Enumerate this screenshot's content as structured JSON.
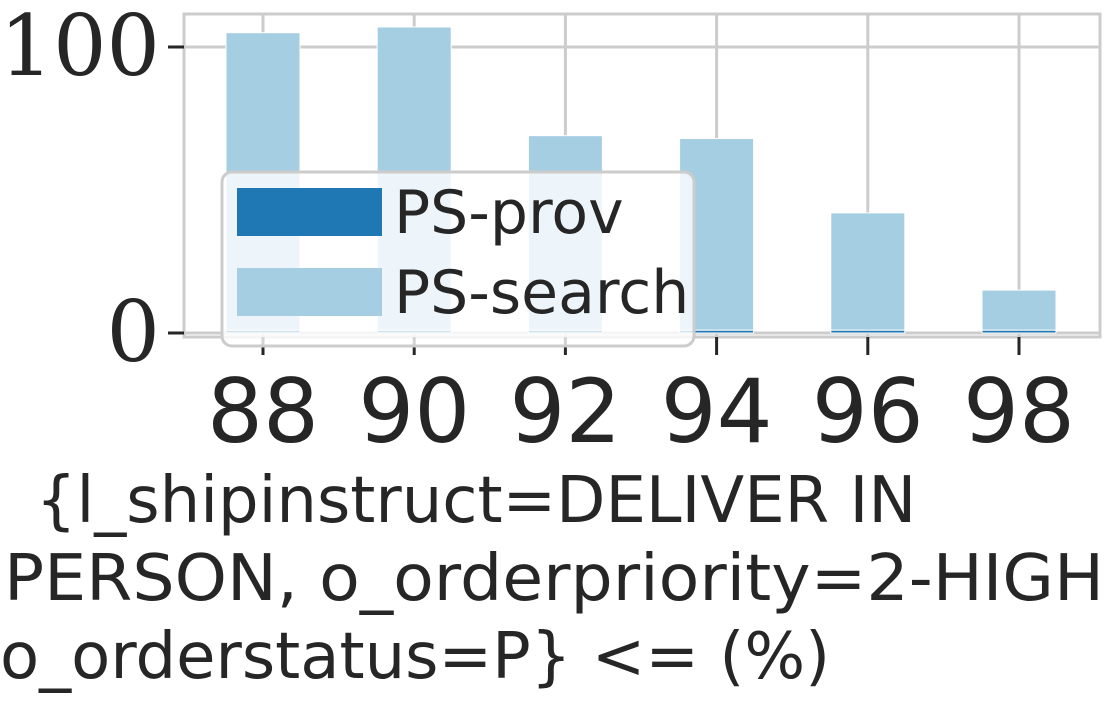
{
  "chart_data": {
    "type": "bar",
    "stacked": true,
    "categories": [
      "88",
      "90",
      "92",
      "94",
      "96",
      "98"
    ],
    "series": [
      {
        "name": "PS-prov",
        "color": "#1f78b4",
        "values": [
          1,
          1,
          1,
          1,
          1,
          1
        ]
      },
      {
        "name": "PS-search",
        "color": "#a6cee3",
        "values": [
          104,
          106,
          68,
          67,
          41,
          14
        ]
      }
    ],
    "ylim": [
      0,
      110
    ],
    "yticks": [
      "0",
      "100"
    ],
    "xlabel_lines": [
      "{l_shipinstruct=DELIVER IN",
      "PERSON, o_orderpriority=2-HIGH",
      "o_orderstatus=P} <= (%)"
    ],
    "grid": true,
    "legend_position": "lower-left"
  }
}
